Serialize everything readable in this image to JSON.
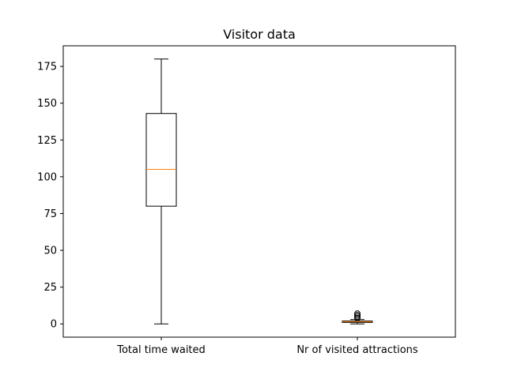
{
  "chart_data": {
    "type": "box",
    "title": "Visitor data",
    "xlabel": "",
    "ylabel": "",
    "ylim": [
      -9,
      189
    ],
    "yticks": [
      0,
      25,
      50,
      75,
      100,
      125,
      150,
      175
    ],
    "grid": false,
    "categories": [
      "Total time waited",
      "Nr of visited attractions"
    ],
    "boxes": [
      {
        "whisker_low": 0,
        "q1": 80,
        "median": 105,
        "q3": 143,
        "whisker_high": 180,
        "outliers": []
      },
      {
        "whisker_low": 0,
        "q1": 1,
        "median": 1.5,
        "q3": 2,
        "whisker_high": 3,
        "outliers": [
          4,
          5,
          6,
          7
        ]
      }
    ],
    "colors": {
      "box": "#000000",
      "median": "#ff7f0e",
      "axes": "#000000"
    }
  }
}
